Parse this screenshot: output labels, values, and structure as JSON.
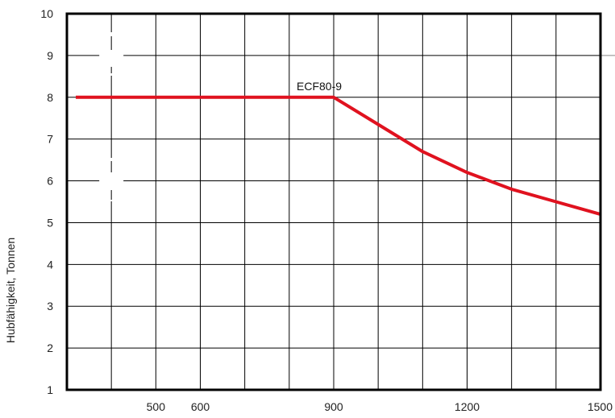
{
  "chart_data": {
    "type": "line",
    "title": "",
    "xlabel": "",
    "ylabel": "Hubfähigkeit, Tonnen",
    "xlim": [
      300,
      1500
    ],
    "ylim": [
      1,
      10
    ],
    "x_ticks": [
      500,
      600,
      900,
      1200,
      1500
    ],
    "y_ticks": [
      1,
      2,
      3,
      4,
      5,
      6,
      7,
      8,
      9,
      10
    ],
    "grid": true,
    "series": [
      {
        "name": "ECF80-9",
        "color": "#e0121f",
        "points": [
          {
            "x": 320,
            "y": 8.0
          },
          {
            "x": 900,
            "y": 8.0
          },
          {
            "x": 1000,
            "y": 7.35
          },
          {
            "x": 1100,
            "y": 6.7
          },
          {
            "x": 1200,
            "y": 6.2
          },
          {
            "x": 1300,
            "y": 5.8
          },
          {
            "x": 1400,
            "y": 5.5
          },
          {
            "x": 1500,
            "y": 5.2
          }
        ]
      }
    ]
  }
}
